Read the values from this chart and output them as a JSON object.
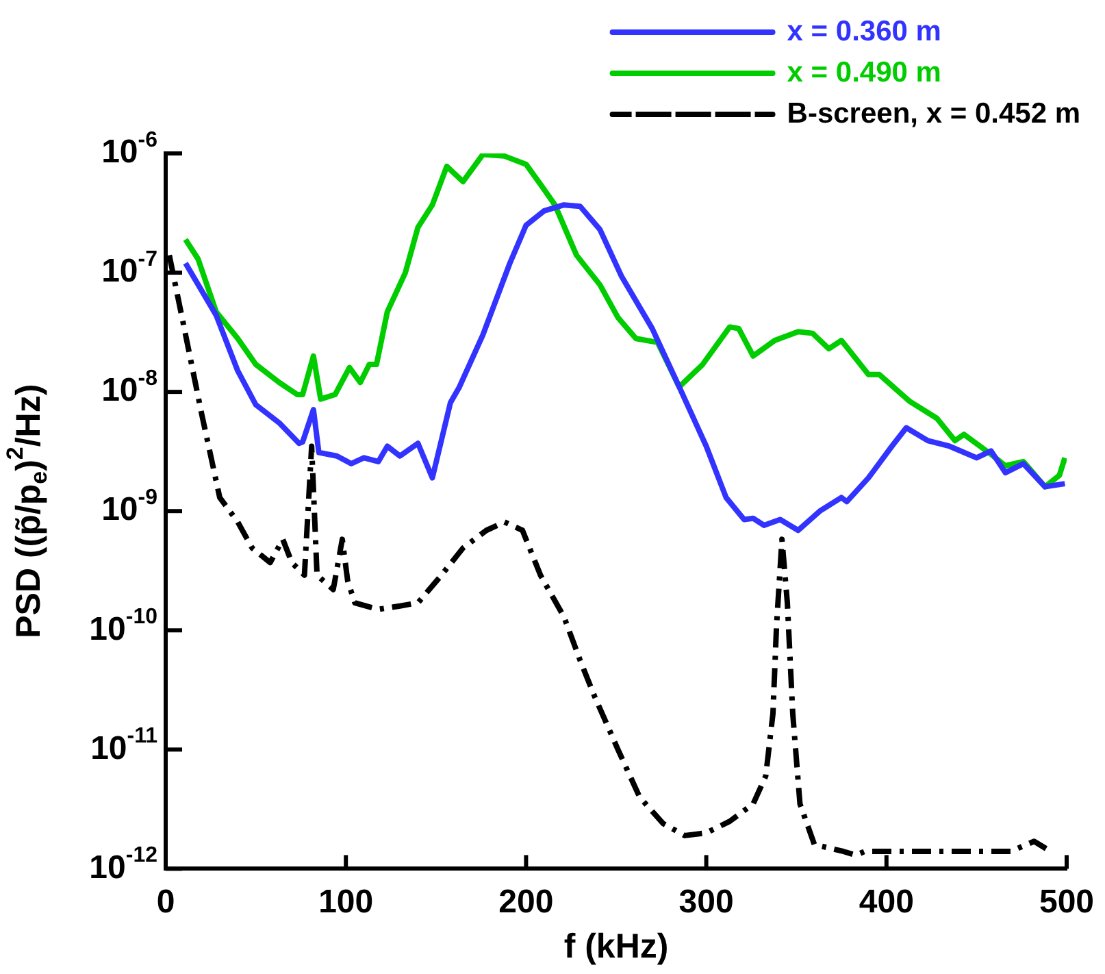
{
  "chart_data": {
    "type": "line",
    "xlabel": "f (kHz)",
    "ylabel": "PSD ((p̃/p$_{e}$)$^{2}$/Hz)",
    "log": "y",
    "legend": "top right",
    "marker": "none",
    "xlim": [
      0,
      500
    ],
    "xticks": [
      0,
      100,
      200,
      300,
      400,
      500
    ],
    "ylim": [
      1e-12,
      1e-06
    ],
    "yticks": [
      {
        "value": 1e-12,
        "label": "10$^{-12}$"
      },
      {
        "value": 1e-11,
        "label": "10$^{-11}$"
      },
      {
        "value": 1e-10,
        "label": "10$^{-10}$"
      },
      {
        "value": 1e-09,
        "label": "10$^{-9}$"
      },
      {
        "value": 1e-08,
        "label": "10$^{-8}$"
      },
      {
        "value": 1e-07,
        "label": "10$^{-7}$"
      },
      {
        "value": 1e-06,
        "label": "10$^{-6}$"
      }
    ],
    "series": [
      {
        "name": "x = 0.360 m",
        "color": "#3333ff",
        "line_style": "solid",
        "x": [
          11,
          28,
          40,
          50,
          63,
          74,
          76,
          82,
          85,
          95,
          103,
          110,
          118,
          123,
          130,
          140,
          148,
          158,
          163,
          176,
          191,
          200,
          210,
          221,
          230,
          241,
          253,
          270,
          285,
          300,
          311,
          321,
          326,
          332,
          341,
          351,
          363,
          375,
          378,
          390,
          403,
          411,
          423,
          435,
          450,
          458,
          466,
          476,
          488,
          499
        ],
        "values": [
          1.2e-07,
          4.4e-08,
          1.5e-08,
          7.8e-09,
          5.5e-09,
          3.7e-09,
          3.8e-09,
          7.1e-09,
          3.1e-09,
          2.9e-09,
          2.5e-09,
          2.8e-09,
          2.6e-09,
          3.5e-09,
          2.9e-09,
          3.7e-09,
          1.9e-09,
          8.1e-09,
          1.1e-08,
          3e-08,
          1.2e-07,
          2.5e-07,
          3.3e-07,
          3.7e-07,
          3.6e-07,
          2.3e-07,
          9.3e-08,
          3.4e-08,
          1.1e-08,
          3.5e-09,
          1.3e-09,
          8.5e-10,
          8.7e-10,
          7.6e-10,
          8.5e-10,
          6.9e-10,
          1e-09,
          1.3e-09,
          1.2e-09,
          1.9e-09,
          3.5e-09,
          5e-09,
          3.9e-09,
          3.5e-09,
          2.8e-09,
          3.2e-09,
          2.1e-09,
          2.5e-09,
          1.6e-09,
          1.7e-09
        ]
      },
      {
        "name": "x = 0.490 m",
        "color": "#00cc00",
        "line_style": "solid",
        "x": [
          11,
          18,
          28,
          40,
          50,
          63,
          73,
          76,
          82,
          86,
          94,
          102,
          108,
          113,
          117,
          123,
          133,
          140,
          148,
          156,
          165,
          176,
          188,
          200,
          208,
          216,
          228,
          241,
          251,
          261,
          273,
          285,
          298,
          313,
          318,
          326,
          338,
          351,
          359,
          368,
          375,
          390,
          396,
          413,
          428,
          438,
          443,
          458,
          466,
          476,
          488,
          496,
          499
        ],
        "values": [
          1.9e-07,
          1.3e-07,
          4.7e-08,
          2.8e-08,
          1.7e-08,
          1.2e-08,
          9.5e-09,
          9.5e-09,
          2e-08,
          8.7e-09,
          9.5e-09,
          1.6e-08,
          1.2e-08,
          1.7e-08,
          1.7e-08,
          4.7e-08,
          1e-07,
          2.4e-07,
          3.7e-07,
          7.8e-07,
          5.8e-07,
          9.8e-07,
          9.5e-07,
          8.1e-07,
          5.5e-07,
          3.7e-07,
          1.4e-07,
          7.9e-08,
          4.2e-08,
          2.8e-08,
          2.6e-08,
          1.1e-08,
          1.7e-08,
          3.5e-08,
          3.4e-08,
          2e-08,
          2.7e-08,
          3.2e-08,
          3.1e-08,
          2.3e-08,
          2.7e-08,
          1.4e-08,
          1.4e-08,
          8.3e-09,
          6e-09,
          3.9e-09,
          4.4e-09,
          3e-09,
          2.4e-09,
          2.6e-09,
          1.6e-09,
          2e-09,
          2.8e-09
        ]
      },
      {
        "name": "B-screen, x = 0.452 m",
        "color": "#000000",
        "line_style": "dashdot",
        "x": [
          2,
          10,
          20,
          30,
          40,
          48,
          58,
          65,
          70,
          77,
          81,
          84,
          93,
          98,
          101,
          105,
          118,
          130,
          140,
          153,
          165,
          178,
          188,
          198,
          208,
          221,
          230,
          238,
          251,
          263,
          276,
          288,
          300,
          313,
          326,
          333,
          337,
          339,
          342,
          345,
          348,
          352,
          360,
          376,
          383,
          388,
          405,
          422,
          434,
          449,
          461,
          469,
          482,
          491
        ],
        "values": [
          1.4e-07,
          3.6e-08,
          6.5e-09,
          1.3e-09,
          8.1e-10,
          4.9e-10,
          3.7e-10,
          5.8e-10,
          3.7e-10,
          2.9e-10,
          3.5e-09,
          2.9e-10,
          2.2e-10,
          5.8e-10,
          2.6e-10,
          1.7e-10,
          1.5e-10,
          1.6e-10,
          1.7e-10,
          2.9e-10,
          4.9e-10,
          6.9e-10,
          8.1e-10,
          6.9e-10,
          2.9e-10,
          1.3e-10,
          5.6e-11,
          2.8e-11,
          1e-11,
          4e-12,
          2.4e-12,
          1.9e-12,
          2e-12,
          2.5e-12,
          3.5e-12,
          6e-12,
          2e-11,
          1.1e-10,
          5.8e-10,
          1.7e-10,
          2e-11,
          3.5e-12,
          1.6e-12,
          1.4e-12,
          1.3e-12,
          1.4e-12,
          1.4e-12,
          1.4e-12,
          1.4e-12,
          1.4e-12,
          1.4e-12,
          1.4e-12,
          1.7e-12,
          1.4e-12
        ]
      }
    ]
  }
}
